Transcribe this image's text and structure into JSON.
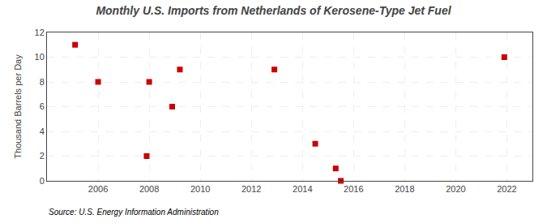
{
  "chart_data": {
    "type": "scatter",
    "title": "Monthly U.S. Imports from Netherlands of Kerosene-Type Jet Fuel",
    "ylabel": "Thousand Barrels per Day",
    "source": "Source: U.S. Energy Information Administration",
    "x": [
      2005.1,
      2006.0,
      2007.9,
      2008.0,
      2008.9,
      2009.2,
      2012.9,
      2014.5,
      2015.3,
      2015.5,
      2021.9
    ],
    "values": [
      11,
      8,
      2,
      8,
      6,
      9,
      9,
      3,
      1,
      0,
      10
    ],
    "color": "#cc0000",
    "marker": "square",
    "xlim": [
      2004.0,
      2023.0
    ],
    "ylim": [
      0,
      12
    ],
    "xticks": [
      2006,
      2008,
      2010,
      2012,
      2014,
      2016,
      2018,
      2020,
      2022
    ],
    "yticks": [
      0,
      2,
      4,
      6,
      8,
      10,
      12
    ],
    "grid": true
  }
}
